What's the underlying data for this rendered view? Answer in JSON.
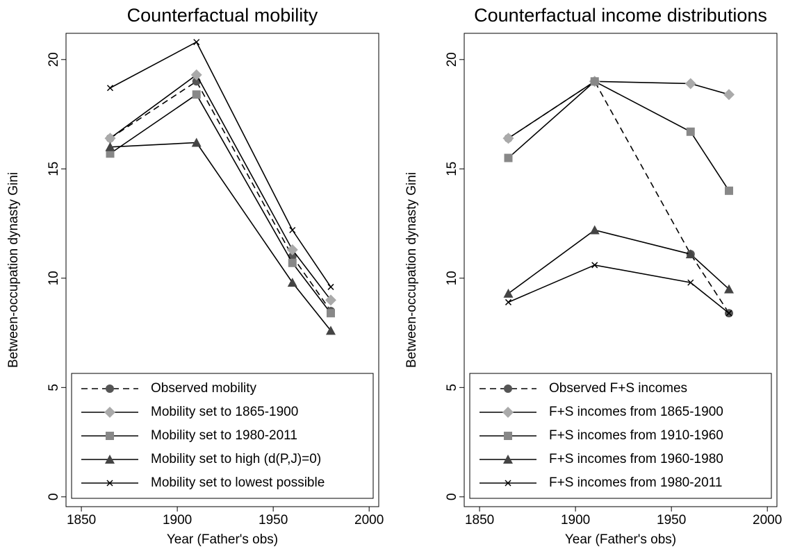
{
  "chart_data": [
    {
      "type": "line",
      "title": "Counterfactual mobility",
      "x_label": "Year (Father's obs)",
      "y_label": "Between-occupation dynasty Gini",
      "x": [
        1865,
        1910,
        1960,
        1980
      ],
      "xlim": [
        1842,
        2005
      ],
      "xticks": [
        1850,
        1900,
        1950,
        2000
      ],
      "ylim": [
        -0.45,
        21.2
      ],
      "yticks": [
        0,
        5,
        10,
        15,
        20
      ],
      "line_color": "#000000",
      "legend": "lower",
      "series": [
        {
          "name": "Observed mobility",
          "color": "#555555",
          "marker": "circle",
          "linestyle": "dashed",
          "values": [
            16.4,
            19.0,
            11.0,
            8.5
          ]
        },
        {
          "name": "Mobility set to 1865-1900",
          "color": "#aaaaaa",
          "marker": "diamond",
          "linestyle": "solid",
          "values": [
            16.4,
            19.3,
            11.3,
            9.0
          ]
        },
        {
          "name": "Mobility set to 1980-2011",
          "color": "#888888",
          "marker": "square",
          "linestyle": "solid",
          "values": [
            15.7,
            18.4,
            10.7,
            8.4
          ]
        },
        {
          "name": "Mobility set to high (d(P,J)=0)",
          "color": "#444444",
          "marker": "triangle",
          "linestyle": "solid",
          "values": [
            16.0,
            16.2,
            9.8,
            7.6
          ]
        },
        {
          "name": "Mobility set to lowest possible",
          "color": "#000000",
          "marker": "x",
          "linestyle": "solid",
          "values": [
            18.7,
            20.8,
            12.2,
            9.6
          ]
        }
      ]
    },
    {
      "type": "line",
      "title": "Counterfactual income distributions",
      "x_label": "Year (Father's obs)",
      "y_label": "Between-occupation dynasty Gini",
      "x": [
        1865,
        1910,
        1960,
        1980
      ],
      "xlim": [
        1842,
        2005
      ],
      "xticks": [
        1850,
        1900,
        1950,
        2000
      ],
      "ylim": [
        -0.45,
        21.2
      ],
      "yticks": [
        0,
        5,
        10,
        15,
        20
      ],
      "line_color": "#000000",
      "legend": "lower",
      "series": [
        {
          "name": "Observed F+S incomes",
          "color": "#555555",
          "marker": "circle",
          "linestyle": "dashed",
          "values": [
            16.4,
            19.0,
            11.1,
            8.4
          ]
        },
        {
          "name": "F+S incomes from 1865-1900",
          "color": "#aaaaaa",
          "marker": "diamond",
          "linestyle": "solid",
          "values": [
            16.4,
            19.0,
            18.9,
            18.4
          ]
        },
        {
          "name": "F+S incomes from 1910-1960",
          "color": "#888888",
          "marker": "square",
          "linestyle": "solid",
          "values": [
            15.5,
            19.0,
            16.7,
            14.0
          ]
        },
        {
          "name": "F+S incomes from 1960-1980",
          "color": "#444444",
          "marker": "triangle",
          "linestyle": "solid",
          "values": [
            9.3,
            12.2,
            11.1,
            9.5
          ]
        },
        {
          "name": "F+S incomes from 1980-2011",
          "color": "#000000",
          "marker": "x",
          "linestyle": "solid",
          "values": [
            8.9,
            10.6,
            9.8,
            8.4
          ]
        }
      ]
    }
  ]
}
